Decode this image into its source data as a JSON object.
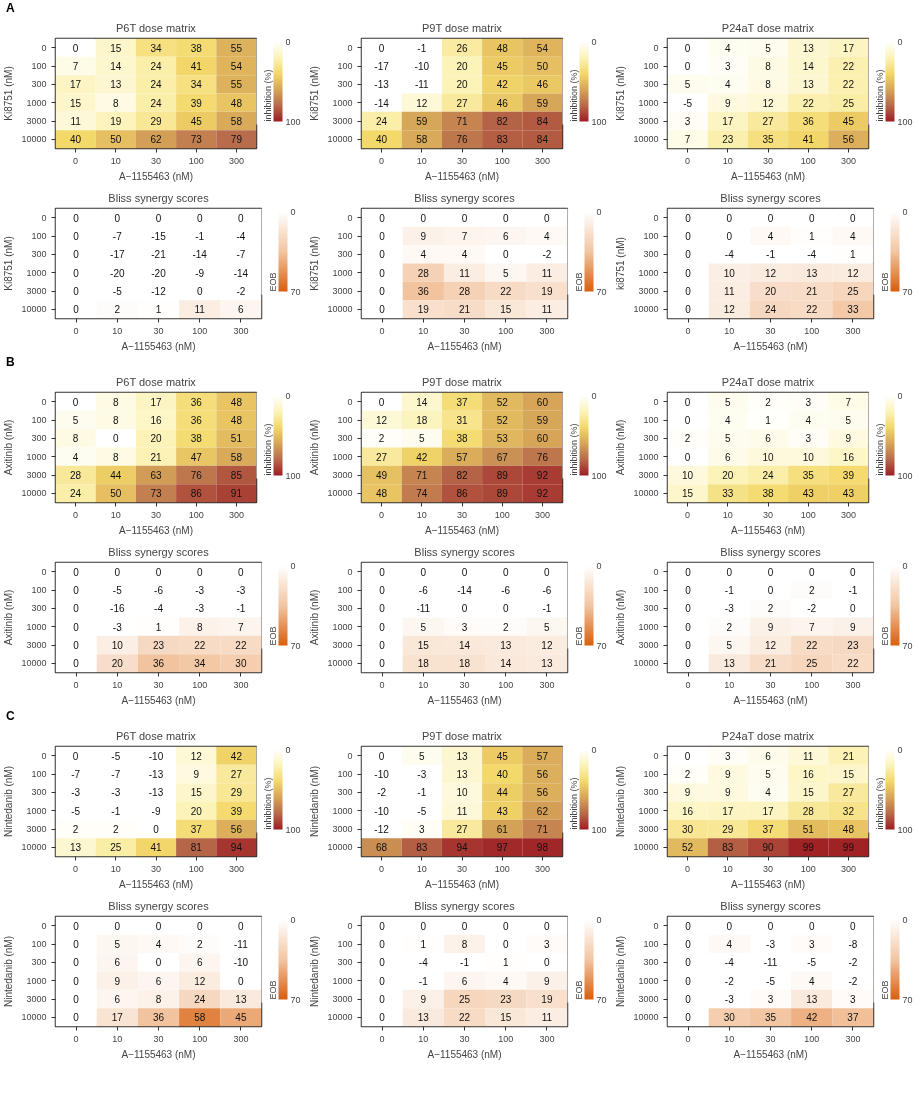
{
  "chart_data": [
    {
      "type": "heatmap",
      "title": "P6T dose matrix",
      "annotations": [
        "A"
      ],
      "xlabel": "A−1155463 (nM)",
      "ylabel": "Ki8751 (nM)",
      "clabel": "inhibition (%)",
      "clim": [
        0,
        100
      ],
      "cticks": [
        0,
        100
      ],
      "data_labels": true,
      "categories": [
        "0",
        "10",
        "30",
        "100",
        "300"
      ],
      "y_categories": [
        "0",
        "100",
        "300",
        "1000",
        "3000",
        "10000"
      ],
      "cells": [
        [
          0,
          15,
          34,
          38,
          55
        ],
        [
          7,
          14,
          24,
          41,
          54
        ],
        [
          17,
          13,
          24,
          34,
          55
        ],
        [
          15,
          8,
          24,
          39,
          48
        ],
        [
          11,
          19,
          29,
          45,
          58
        ],
        [
          40,
          50,
          62,
          73,
          79
        ]
      ]
    },
    {
      "type": "heatmap",
      "title": "P9T dose matrix",
      "xlabel": "A−1155463 (nM)",
      "ylabel": "Ki8751 (nM)",
      "clabel": "inhibition (%)",
      "clim": [
        0,
        100
      ],
      "cticks": [
        0,
        100
      ],
      "data_labels": true,
      "categories": [
        "0",
        "10",
        "30",
        "100",
        "300"
      ],
      "y_categories": [
        "0",
        "100",
        "300",
        "1000",
        "3000",
        "10000"
      ],
      "cells": [
        [
          0,
          -1,
          26,
          48,
          54
        ],
        [
          -17,
          -10,
          20,
          45,
          50
        ],
        [
          -13,
          -11,
          20,
          42,
          46
        ],
        [
          -14,
          12,
          27,
          46,
          59
        ],
        [
          24,
          59,
          71,
          82,
          84
        ],
        [
          40,
          58,
          76,
          83,
          84
        ]
      ]
    },
    {
      "type": "heatmap",
      "title": "P24aT dose matrix",
      "xlabel": "A−1155463 (nM)",
      "ylabel": "Ki8751 (nM)",
      "clabel": "inhibition (%)",
      "clim": [
        0,
        100
      ],
      "cticks": [
        0,
        100
      ],
      "data_labels": true,
      "categories": [
        "0",
        "10",
        "30",
        "100",
        "300"
      ],
      "y_categories": [
        "0",
        "100",
        "300",
        "1000",
        "3000",
        "10000"
      ],
      "cells": [
        [
          0,
          4,
          5,
          13,
          17
        ],
        [
          0,
          3,
          8,
          14,
          22
        ],
        [
          5,
          4,
          8,
          13,
          22
        ],
        [
          -5,
          9,
          12,
          22,
          25
        ],
        [
          3,
          17,
          27,
          36,
          45
        ],
        [
          7,
          23,
          35,
          41,
          56
        ]
      ]
    },
    {
      "type": "heatmap",
      "title": "Bliss synergy scores",
      "xlabel": "A−1155463 (nM)",
      "ylabel": "Ki8751 (nM)",
      "clabel": "EOB",
      "clim": [
        0,
        70
      ],
      "cticks": [
        0,
        70
      ],
      "data_labels": true,
      "categories": [
        "0",
        "10",
        "30",
        "100",
        "300"
      ],
      "y_categories": [
        "0",
        "100",
        "300",
        "1000",
        "3000",
        "10000"
      ],
      "cells": [
        [
          0,
          0,
          0,
          0,
          0
        ],
        [
          0,
          -7,
          -15,
          -1,
          -4
        ],
        [
          0,
          -17,
          -21,
          -14,
          -7
        ],
        [
          0,
          -20,
          -20,
          -9,
          -14
        ],
        [
          0,
          -5,
          -12,
          0,
          -2
        ],
        [
          0,
          2,
          1,
          11,
          6
        ]
      ]
    },
    {
      "type": "heatmap",
      "title": "Bliss synergy scores",
      "xlabel": "A−1155463 (nM)",
      "ylabel": "Ki8751 (nM)",
      "clabel": "EOB",
      "clim": [
        0,
        70
      ],
      "cticks": [
        0,
        70
      ],
      "data_labels": true,
      "categories": [
        "0",
        "10",
        "30",
        "100",
        "300"
      ],
      "y_categories": [
        "0",
        "100",
        "300",
        "1000",
        "3000",
        "10000"
      ],
      "cells": [
        [
          0,
          0,
          0,
          0,
          0
        ],
        [
          0,
          9,
          7,
          6,
          4
        ],
        [
          0,
          4,
          4,
          0,
          -2
        ],
        [
          0,
          28,
          11,
          5,
          11
        ],
        [
          0,
          36,
          28,
          22,
          19
        ],
        [
          0,
          19,
          21,
          15,
          11
        ]
      ]
    },
    {
      "type": "heatmap",
      "title": "Bliss synergy scores",
      "xlabel": "A−1155463 (nM)",
      "ylabel": "ki8751 (nM)",
      "clabel": "EOB",
      "clim": [
        0,
        70
      ],
      "cticks": [
        0,
        70
      ],
      "data_labels": true,
      "categories": [
        "0",
        "10",
        "30",
        "100",
        "300"
      ],
      "y_categories": [
        "0",
        "100",
        "300",
        "1000",
        "3000",
        "10000"
      ],
      "cells": [
        [
          0,
          0,
          0,
          0,
          0
        ],
        [
          0,
          0,
          4,
          1,
          4
        ],
        [
          0,
          -4,
          -1,
          -4,
          1
        ],
        [
          0,
          10,
          12,
          13,
          12
        ],
        [
          0,
          11,
          20,
          21,
          25
        ],
        [
          0,
          12,
          24,
          22,
          33
        ]
      ]
    },
    {
      "type": "heatmap",
      "title": "P6T dose matrix",
      "annotations": [
        "B"
      ],
      "xlabel": "A−1155463 (nM)",
      "ylabel": "Axitinib (nM)",
      "clabel": "inhibition (%)",
      "clim": [
        0,
        100
      ],
      "cticks": [
        0,
        100
      ],
      "data_labels": true,
      "categories": [
        "0",
        "10",
        "30",
        "100",
        "300"
      ],
      "y_categories": [
        "0",
        "100",
        "300",
        "1000",
        "3000",
        "10000"
      ],
      "cells": [
        [
          0,
          8,
          17,
          36,
          48
        ],
        [
          5,
          8,
          16,
          36,
          48
        ],
        [
          8,
          0,
          20,
          38,
          51
        ],
        [
          4,
          8,
          21,
          47,
          58
        ],
        [
          28,
          44,
          63,
          76,
          85
        ],
        [
          24,
          50,
          73,
          86,
          91
        ]
      ]
    },
    {
      "type": "heatmap",
      "title": "P9T dose matrix",
      "xlabel": "A−1155463 (nM)",
      "ylabel": "Axitinib (nM)",
      "clabel": "inhibition (%)",
      "clim": [
        0,
        100
      ],
      "cticks": [
        0,
        100
      ],
      "data_labels": true,
      "categories": [
        "0",
        "10",
        "30",
        "100",
        "300"
      ],
      "y_categories": [
        "0",
        "100",
        "300",
        "1000",
        "3000",
        "10000"
      ],
      "cells": [
        [
          0,
          14,
          37,
          52,
          60
        ],
        [
          12,
          18,
          31,
          52,
          59
        ],
        [
          2,
          5,
          38,
          53,
          60
        ],
        [
          27,
          42,
          57,
          67,
          76
        ],
        [
          49,
          71,
          82,
          89,
          92
        ],
        [
          48,
          74,
          86,
          89,
          92
        ]
      ]
    },
    {
      "type": "heatmap",
      "title": "P24aT dose matrix",
      "xlabel": "A−1155463 (nM)",
      "ylabel": "Axitinib (nM)",
      "clabel": "inhibition (%)",
      "clim": [
        0,
        100
      ],
      "cticks": [
        0,
        100
      ],
      "data_labels": true,
      "categories": [
        "0",
        "10",
        "30",
        "100",
        "300"
      ],
      "y_categories": [
        "0",
        "100",
        "300",
        "1000",
        "3000",
        "10000"
      ],
      "cells": [
        [
          0,
          5,
          2,
          3,
          7
        ],
        [
          0,
          4,
          1,
          4,
          5
        ],
        [
          2,
          5,
          6,
          3,
          9
        ],
        [
          0,
          6,
          10,
          10,
          16
        ],
        [
          10,
          20,
          24,
          35,
          39
        ],
        [
          15,
          33,
          38,
          43,
          43
        ]
      ]
    },
    {
      "type": "heatmap",
      "title": "Bliss synergy scores",
      "xlabel": "A−1155463 (nM)",
      "ylabel": "Axitinib (nM)",
      "clabel": "EOB",
      "clim": [
        0,
        70
      ],
      "cticks": [
        0,
        70
      ],
      "data_labels": true,
      "categories": [
        "0",
        "10",
        "30",
        "100",
        "300"
      ],
      "y_categories": [
        "0",
        "100",
        "300",
        "1000",
        "3000",
        "10000"
      ],
      "cells": [
        [
          0,
          0,
          0,
          0,
          0
        ],
        [
          0,
          -5,
          -6,
          -3,
          -3
        ],
        [
          0,
          -16,
          -4,
          -3,
          -1
        ],
        [
          0,
          -3,
          1,
          8,
          7
        ],
        [
          0,
          10,
          23,
          22,
          22
        ],
        [
          0,
          20,
          36,
          34,
          30
        ]
      ]
    },
    {
      "type": "heatmap",
      "title": "Bliss synergy scores",
      "xlabel": "A−1155463 (nM)",
      "ylabel": "Axitinib (nM)",
      "clabel": "EOB",
      "clim": [
        0,
        70
      ],
      "cticks": [
        0,
        70
      ],
      "data_labels": true,
      "categories": [
        "0",
        "10",
        "30",
        "100",
        "300"
      ],
      "y_categories": [
        "0",
        "100",
        "300",
        "1000",
        "3000",
        "10000"
      ],
      "cells": [
        [
          0,
          0,
          0,
          0,
          0
        ],
        [
          0,
          -6,
          -14,
          -6,
          -6
        ],
        [
          0,
          -11,
          0,
          0,
          -1
        ],
        [
          0,
          5,
          3,
          2,
          5
        ],
        [
          0,
          15,
          14,
          13,
          12
        ],
        [
          0,
          18,
          18,
          14,
          13
        ]
      ]
    },
    {
      "type": "heatmap",
      "title": "Bliss synergy scores",
      "xlabel": "A−1155463 (nM)",
      "ylabel": "Axitinib (nM)",
      "clabel": "EOB",
      "clim": [
        0,
        70
      ],
      "cticks": [
        0,
        70
      ],
      "data_labels": true,
      "categories": [
        "0",
        "10",
        "30",
        "100",
        "300"
      ],
      "y_categories": [
        "0",
        "100",
        "300",
        "1000",
        "3000",
        "10000"
      ],
      "cells": [
        [
          0,
          0,
          0,
          0,
          0
        ],
        [
          0,
          -1,
          0,
          2,
          -1
        ],
        [
          0,
          -3,
          2,
          -2,
          0
        ],
        [
          0,
          2,
          9,
          7,
          9
        ],
        [
          0,
          5,
          12,
          22,
          23
        ],
        [
          0,
          13,
          21,
          25,
          22
        ]
      ]
    },
    {
      "type": "heatmap",
      "title": "P6T dose matrix",
      "annotations": [
        "C"
      ],
      "xlabel": "A−1155463 (nM)",
      "ylabel": "Nintedanib (nM)",
      "clabel": "inhibition (%)",
      "clim": [
        0,
        100
      ],
      "cticks": [
        0,
        100
      ],
      "data_labels": true,
      "categories": [
        "0",
        "10",
        "30",
        "100",
        "300"
      ],
      "y_categories": [
        "0",
        "100",
        "300",
        "1000",
        "3000",
        "10000"
      ],
      "cells": [
        [
          0,
          -5,
          -10,
          12,
          42
        ],
        [
          -7,
          -7,
          -13,
          9,
          27
        ],
        [
          -3,
          -3,
          -13,
          15,
          29
        ],
        [
          -5,
          -1,
          -9,
          20,
          39
        ],
        [
          2,
          2,
          0,
          37,
          56
        ],
        [
          13,
          25,
          41,
          81,
          94
        ]
      ]
    },
    {
      "type": "heatmap",
      "title": "P9T dose matrix",
      "xlabel": "A−1155463 (nM)",
      "ylabel": "Nintedanib (nM)",
      "clabel": "inhibition (%)",
      "clim": [
        0,
        100
      ],
      "cticks": [
        0,
        100
      ],
      "data_labels": true,
      "categories": [
        "0",
        "10",
        "30",
        "100",
        "300"
      ],
      "y_categories": [
        "0",
        "100",
        "300",
        "1000",
        "3000",
        "10000"
      ],
      "cells": [
        [
          0,
          5,
          13,
          45,
          57
        ],
        [
          -10,
          -3,
          13,
          40,
          56
        ],
        [
          -2,
          -1,
          10,
          44,
          56
        ],
        [
          -10,
          -5,
          11,
          43,
          62
        ],
        [
          -12,
          3,
          27,
          61,
          71
        ],
        [
          68,
          83,
          94,
          97,
          98
        ]
      ]
    },
    {
      "type": "heatmap",
      "title": "P24aT dose matrix",
      "xlabel": "A−1155463 (nM)",
      "ylabel": "Nintedanib (nM)",
      "clabel": "inhibition (%)",
      "clim": [
        0,
        100
      ],
      "cticks": [
        0,
        100
      ],
      "data_labels": true,
      "categories": [
        "0",
        "10",
        "30",
        "100",
        "300"
      ],
      "y_categories": [
        "0",
        "100",
        "300",
        "1000",
        "3000",
        "10000"
      ],
      "cells": [
        [
          0,
          3,
          6,
          11,
          21
        ],
        [
          2,
          9,
          5,
          16,
          15
        ],
        [
          9,
          9,
          4,
          15,
          27
        ],
        [
          16,
          17,
          17,
          28,
          32
        ],
        [
          30,
          29,
          37,
          51,
          48
        ],
        [
          52,
          83,
          90,
          99,
          99
        ]
      ]
    },
    {
      "type": "heatmap",
      "title": "Bliss synergy scores",
      "xlabel": "A−1155463 (nM)",
      "ylabel": "Nintedanib (nM)",
      "clabel": "EOB",
      "clim": [
        0,
        70
      ],
      "cticks": [
        0,
        70
      ],
      "data_labels": true,
      "categories": [
        "0",
        "10",
        "30",
        "100",
        "300"
      ],
      "y_categories": [
        "0",
        "100",
        "300",
        "1000",
        "3000",
        "10000"
      ],
      "cells": [
        [
          0,
          0,
          0,
          0,
          0
        ],
        [
          0,
          5,
          4,
          2,
          -11
        ],
        [
          0,
          6,
          0,
          6,
          -10
        ],
        [
          0,
          9,
          6,
          12,
          0
        ],
        [
          0,
          6,
          8,
          24,
          13
        ],
        [
          0,
          17,
          36,
          58,
          45
        ]
      ]
    },
    {
      "type": "heatmap",
      "title": "Bliss synergy scores",
      "xlabel": "A−1155463 (nM)",
      "ylabel": "Nintedanib (nM)",
      "clabel": "EOB",
      "clim": [
        0,
        70
      ],
      "cticks": [
        0,
        70
      ],
      "data_labels": true,
      "categories": [
        "0",
        "10",
        "30",
        "100",
        "300"
      ],
      "y_categories": [
        "0",
        "100",
        "300",
        "1000",
        "3000",
        "10000"
      ],
      "cells": [
        [
          0,
          0,
          0,
          0,
          0
        ],
        [
          0,
          1,
          8,
          0,
          3
        ],
        [
          0,
          -4,
          -1,
          1,
          0
        ],
        [
          0,
          -1,
          6,
          4,
          9
        ],
        [
          0,
          9,
          25,
          23,
          19
        ],
        [
          0,
          13,
          22,
          15,
          11
        ]
      ]
    },
    {
      "type": "heatmap",
      "title": "Bliss synergy scores",
      "xlabel": "A−1155463 (nM)",
      "ylabel": "Nintedanib (nM)",
      "clabel": "EOB",
      "clim": [
        0,
        70
      ],
      "cticks": [
        0,
        70
      ],
      "data_labels": true,
      "categories": [
        "0",
        "10",
        "30",
        "100",
        "300"
      ],
      "y_categories": [
        "0",
        "100",
        "300",
        "1000",
        "3000",
        "10000"
      ],
      "cells": [
        [
          0,
          0,
          0,
          0,
          0
        ],
        [
          0,
          4,
          -3,
          3,
          -8
        ],
        [
          0,
          -4,
          -11,
          -5,
          -2
        ],
        [
          0,
          -2,
          -5,
          4,
          -2
        ],
        [
          0,
          -3,
          3,
          13,
          3
        ],
        [
          0,
          30,
          35,
          42,
          37
        ]
      ]
    }
  ]
}
